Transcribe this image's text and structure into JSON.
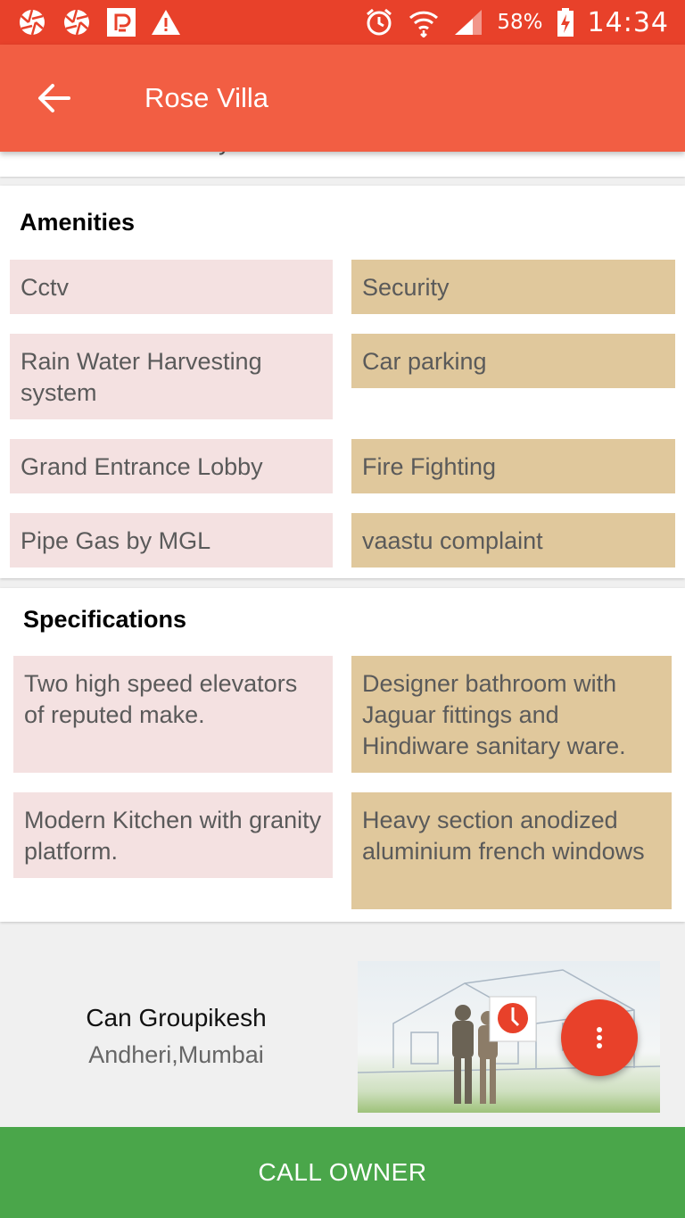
{
  "status_bar": {
    "battery": "58%",
    "time": "14:34",
    "left_icons": [
      "aperture-icon",
      "aperture-icon",
      "paytm-icon",
      "warning-icon"
    ],
    "right_icons": [
      "alarm-icon",
      "wifi-icon",
      "signal-icon",
      "battery-charging-icon"
    ]
  },
  "app_bar": {
    "title": "Rose Villa",
    "back_icon": "arrow-back-icon"
  },
  "description": {
    "visible_fragment": "statement in Lifestyle."
  },
  "amenities": {
    "title": "Amenities",
    "items": [
      "Cctv",
      "Security",
      "Rain Water Harvesting system",
      "Car parking",
      "Grand Entrance Lobby",
      "Fire Fighting",
      "Pipe Gas by MGL",
      "vaastu complaint"
    ]
  },
  "specifications": {
    "title": "Specifications",
    "items": [
      "Two high speed elevators of reputed make.",
      "Designer bathroom with Jaguar fittings and Hindiware sanitary ware.",
      "Modern Kitchen with granity platform.",
      "Heavy section anodized aluminium french windows"
    ]
  },
  "owner": {
    "name": "Can Groupikesh",
    "location": "Andheri,Mumbai"
  },
  "fab_icon": "more-vert-icon",
  "call_button": "CALL OWNER",
  "colors": {
    "status_bar": "#e8412a",
    "app_bar": "#f25e43",
    "chip_left": "#f4e1e1",
    "chip_right": "#e0c89c",
    "call_button": "#4aa64a"
  }
}
